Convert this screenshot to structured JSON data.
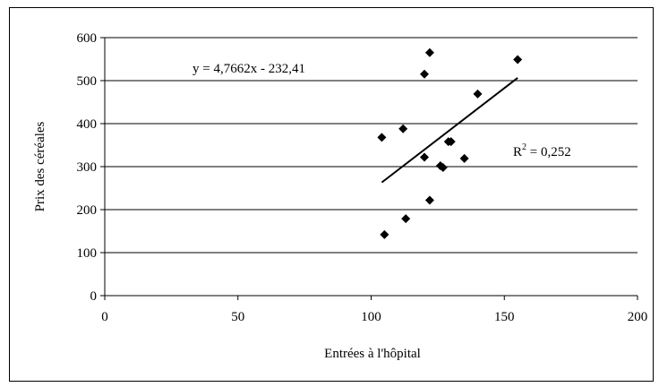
{
  "chart_data": {
    "type": "scatter",
    "title": "",
    "xlabel": "Entrées à l'hôpital",
    "ylabel": "Prix des céréales",
    "xlim": [
      0,
      200
    ],
    "ylim": [
      0,
      600
    ],
    "x_ticks": [
      "0",
      "50",
      "100",
      "150",
      "200"
    ],
    "y_ticks": [
      "0",
      "100",
      "200",
      "300",
      "400",
      "500",
      "600"
    ],
    "grid": "horizontal",
    "legend": "none",
    "points": [
      {
        "x": 104,
        "y": 368
      },
      {
        "x": 105,
        "y": 142
      },
      {
        "x": 112,
        "y": 388
      },
      {
        "x": 113,
        "y": 179
      },
      {
        "x": 120,
        "y": 515
      },
      {
        "x": 120,
        "y": 322
      },
      {
        "x": 122,
        "y": 565
      },
      {
        "x": 122,
        "y": 222
      },
      {
        "x": 126,
        "y": 302
      },
      {
        "x": 127,
        "y": 298
      },
      {
        "x": 129,
        "y": 358
      },
      {
        "x": 130,
        "y": 358
      },
      {
        "x": 135,
        "y": 319
      },
      {
        "x": 140,
        "y": 469
      },
      {
        "x": 155,
        "y": 549
      }
    ],
    "trendline": {
      "slope": 4.7662,
      "intercept": -232.41,
      "x_range": [
        104,
        155
      ]
    },
    "annotations": {
      "equation": "y = 4,7662x - 232,41",
      "r2_prefix": "R",
      "r2_exponent": "2",
      "r2_value": " = 0,252"
    },
    "colors": {
      "marker": "#000000",
      "gridline": "#000000",
      "trendline": "#000000"
    }
  }
}
